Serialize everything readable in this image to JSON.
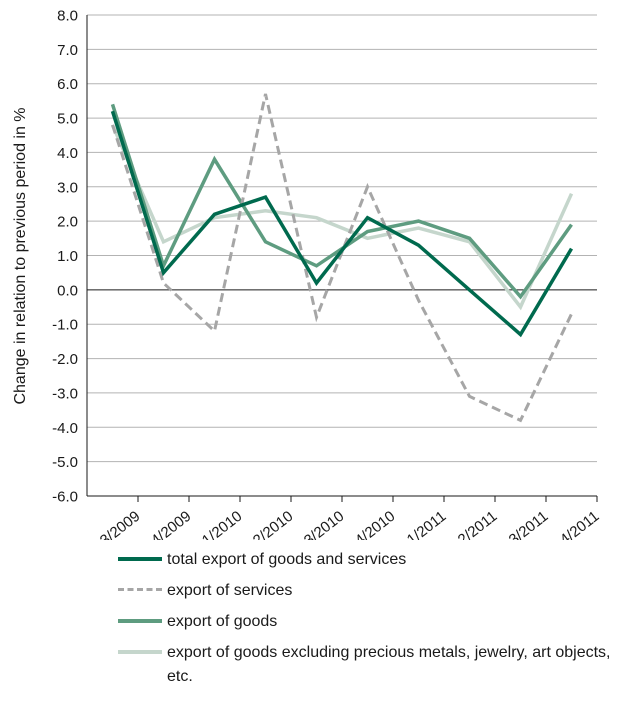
{
  "chart_data": {
    "type": "line",
    "ylabel": "Change in relation to previous period in %",
    "xlabel": "",
    "ylim": [
      -6.0,
      8.0
    ],
    "yticks": [
      "8.0",
      "7.0",
      "6.0",
      "5.0",
      "4.0",
      "3.0",
      "2.0",
      "1.0",
      "0.0",
      "-1.0",
      "-2.0",
      "-3.0",
      "-4.0",
      "-5.0",
      "-6.0"
    ],
    "categories": [
      "3/2009",
      "4/2009",
      "1/2010",
      "2/2010",
      "3/2010",
      "4/2010",
      "1/2011",
      "2/2011",
      "3/2011",
      "4/2011"
    ],
    "grid": true,
    "legend_position": "bottom",
    "series": [
      {
        "name": "total export of goods and services",
        "color": "#006a4e",
        "style": "solid",
        "values": [
          5.2,
          0.5,
          2.2,
          2.7,
          0.2,
          2.1,
          1.3,
          0.0,
          -1.3,
          1.2
        ]
      },
      {
        "name": "export of services",
        "color": "#a6a6a6",
        "style": "dashed",
        "values": [
          4.8,
          0.2,
          -1.2,
          5.7,
          -0.8,
          3.0,
          -0.3,
          -3.1,
          -3.8,
          -0.7
        ]
      },
      {
        "name": "export of goods",
        "color": "#5e9c80",
        "style": "solid",
        "values": [
          5.4,
          0.7,
          3.8,
          1.4,
          0.7,
          1.7,
          2.0,
          1.5,
          -0.2,
          1.9
        ]
      },
      {
        "name": "export of goods excluding precious metals, jewelry, art objects, etc.",
        "color": "#c5d6cc",
        "style": "solid",
        "values": [
          4.8,
          1.4,
          2.1,
          2.3,
          2.1,
          1.5,
          1.8,
          1.4,
          -0.5,
          2.8
        ]
      }
    ]
  }
}
